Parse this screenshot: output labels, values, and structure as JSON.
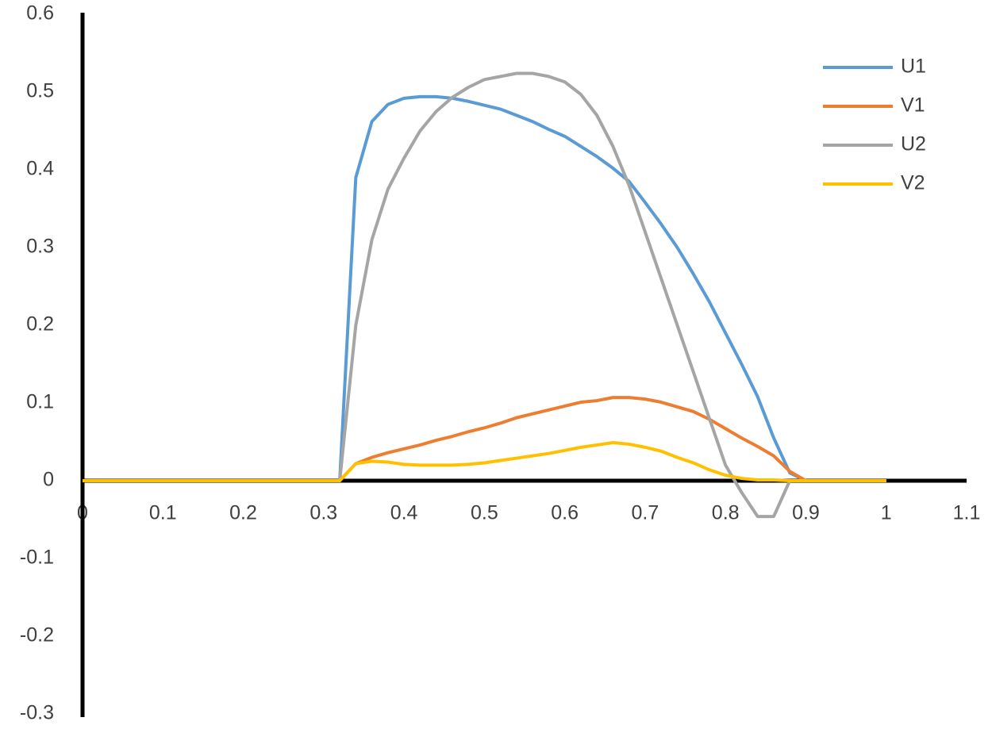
{
  "chart_data": {
    "type": "line",
    "x": [
      0,
      0.02,
      0.04,
      0.06,
      0.08,
      0.1,
      0.12,
      0.14,
      0.16,
      0.18,
      0.2,
      0.22,
      0.24,
      0.26,
      0.28,
      0.3,
      0.32,
      0.34,
      0.36,
      0.38,
      0.4,
      0.42,
      0.44,
      0.46,
      0.48,
      0.5,
      0.52,
      0.54,
      0.56,
      0.58,
      0.6,
      0.62,
      0.64,
      0.66,
      0.68,
      0.7,
      0.72,
      0.74,
      0.76,
      0.78,
      0.8,
      0.82,
      0.84,
      0.86,
      0.88,
      0.9,
      0.92,
      0.94,
      0.96,
      0.98,
      1
    ],
    "series": [
      {
        "name": "U1",
        "color": "#5b9bd5",
        "values": [
          0,
          0,
          0,
          0,
          0,
          0,
          0,
          0,
          0,
          0,
          0,
          0,
          0,
          0,
          0,
          0,
          0,
          0.39,
          0.462,
          0.484,
          0.492,
          0.494,
          0.494,
          0.492,
          0.488,
          0.483,
          0.478,
          0.47,
          0.462,
          0.452,
          0.443,
          0.43,
          0.417,
          0.402,
          0.385,
          0.358,
          0.33,
          0.3,
          0.266,
          0.23,
          0.19,
          0.15,
          0.108,
          0.055,
          0.01,
          0,
          0,
          0,
          0,
          0,
          0
        ]
      },
      {
        "name": "V1",
        "color": "#ed7d31",
        "values": [
          0,
          0,
          0,
          0,
          0,
          0,
          0,
          0,
          0,
          0,
          0,
          0,
          0,
          0,
          0,
          0,
          0,
          0.022,
          0.03,
          0.036,
          0.041,
          0.046,
          0.052,
          0.057,
          0.063,
          0.068,
          0.074,
          0.081,
          0.086,
          0.091,
          0.096,
          0.101,
          0.103,
          0.107,
          0.107,
          0.105,
          0.101,
          0.095,
          0.089,
          0.079,
          0.067,
          0.055,
          0.044,
          0.032,
          0.012,
          0,
          0,
          0,
          0,
          0,
          0
        ]
      },
      {
        "name": "U2",
        "color": "#a5a5a5",
        "values": [
          0,
          0,
          0,
          0,
          0,
          0,
          0,
          0,
          0,
          0,
          0,
          0,
          0,
          0,
          0,
          0,
          0,
          0.2,
          0.31,
          0.375,
          0.415,
          0.45,
          0.475,
          0.493,
          0.506,
          0.516,
          0.52,
          0.524,
          0.524,
          0.52,
          0.513,
          0.497,
          0.47,
          0.43,
          0.38,
          0.32,
          0.26,
          0.2,
          0.14,
          0.08,
          0.02,
          -0.015,
          -0.046,
          -0.046,
          0,
          0,
          0,
          0,
          0,
          0,
          0
        ]
      },
      {
        "name": "V2",
        "color": "#ffc000",
        "values": [
          0,
          0,
          0,
          0,
          0,
          0,
          0,
          0,
          0,
          0,
          0,
          0,
          0,
          0,
          0,
          0,
          0,
          0.022,
          0.025,
          0.024,
          0.021,
          0.02,
          0.02,
          0.02,
          0.021,
          0.023,
          0.026,
          0.029,
          0.032,
          0.035,
          0.039,
          0.043,
          0.046,
          0.049,
          0.047,
          0.043,
          0.038,
          0.03,
          0.023,
          0.014,
          0.007,
          0.003,
          0.001,
          0.001,
          0,
          0,
          0,
          0,
          0,
          0,
          0
        ]
      }
    ],
    "xlim": [
      0,
      1.1
    ],
    "xticks": [
      0,
      0.1,
      0.2,
      0.3,
      0.4,
      0.5,
      0.6,
      0.7,
      0.8,
      0.9,
      1,
      1.1
    ],
    "ylim": [
      -0.3,
      0.6
    ],
    "yticks": [
      -0.3,
      -0.2,
      -0.1,
      0,
      0.1,
      0.2,
      0.3,
      0.4,
      0.5,
      0.6
    ],
    "grid": false,
    "legend": "upper right"
  }
}
